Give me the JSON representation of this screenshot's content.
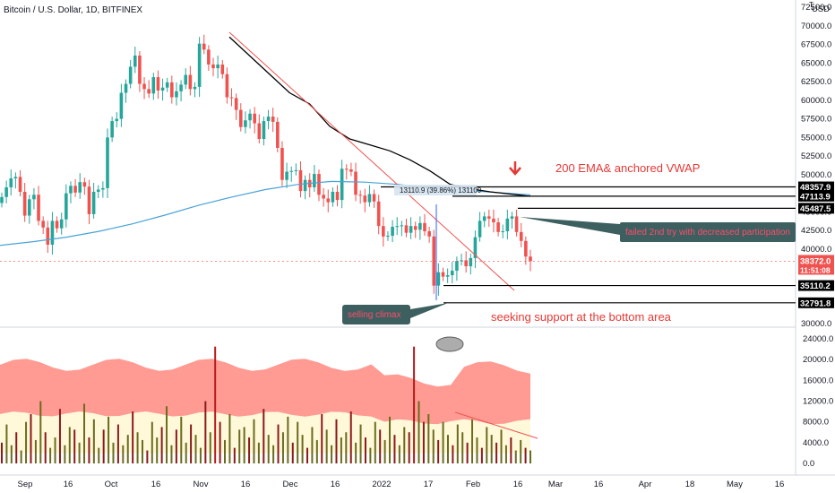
{
  "header": {
    "symbol": "Bitcoin / U.S. Dollar, 1D, BITFINEX",
    "currency": "USD",
    "currency_superscript": "T"
  },
  "colors": {
    "up": "#26a69a",
    "down": "#ef5350",
    "ema": "#4aa3d8",
    "vwap": "#000000",
    "note": "#e53935",
    "bubble": "#3d5f5f"
  },
  "chart_data": [
    {
      "type": "candlestick",
      "title": "Bitcoin / U.S. Dollar, 1D, BITFINEX",
      "ylabel": "USD",
      "ylim": [
        29500,
        72600
      ],
      "y_ticks": [
        "72500.0",
        "70000.0",
        "67500.0",
        "65000.0",
        "62500.0",
        "60000.0",
        "57500.0",
        "55000.0",
        "52500.0",
        "50000.0",
        "47500.0",
        "45000.0",
        "42500.0",
        "40000.0",
        "37500.0",
        "35000.0",
        "32500.0",
        "30000.0"
      ],
      "x_ticks": [
        "Sep",
        "16",
        "Oct",
        "16",
        "Nov",
        "16",
        "Dec",
        "16",
        "2022",
        "17",
        "Feb",
        "16",
        "Mar",
        "16",
        "Apr",
        "18",
        "May",
        "16"
      ],
      "price_levels": [
        {
          "label": "48357.9",
          "value": 48357.9
        },
        {
          "label": "47113.9",
          "value": 47113.9
        },
        {
          "label": "45487.5",
          "value": 45487.5
        },
        {
          "label": "35110.2",
          "value": 35110.2
        },
        {
          "label": "32791.8",
          "value": 32791.8
        }
      ],
      "last_price": {
        "label": "38372.0",
        "countdown": "11:51:08",
        "value": 38372.0
      },
      "measure_label": "13110.9 (39.86%) 131109",
      "annotations": [
        {
          "text": "200 EMA& anchored VWAP"
        },
        {
          "text": "failed 2nd try with decreased participation"
        },
        {
          "text": "selling climax"
        },
        {
          "text": "seeking support at the bottom area"
        }
      ],
      "series": [
        {
          "name": "200 EMA",
          "values": [
            40500,
            41000,
            41600,
            42400,
            43400,
            44600,
            45900,
            47000,
            48000,
            48700,
            49100,
            49000,
            48700,
            48200,
            47900,
            47600,
            47300
          ]
        },
        {
          "name": "anchored VWAP",
          "values": [
            68500,
            66000,
            63500,
            61000,
            59500,
            56500,
            54800,
            54000,
            53200,
            52000,
            50500,
            48700,
            48100,
            47700,
            47400,
            47100
          ]
        },
        {
          "name": "BTCUSD close",
          "values": [
            47000,
            48300,
            49500,
            49700,
            47700,
            44500,
            46700,
            47300,
            43800,
            42900,
            40600,
            43800,
            42800,
            44000,
            47500,
            48500,
            47600,
            49000,
            48400,
            44700,
            47700,
            48000,
            48200,
            55000,
            57200,
            57500,
            61000,
            62200,
            64500,
            66000,
            62200,
            61500,
            60900,
            63100,
            61300,
            61700,
            62400,
            60400,
            61200,
            62100,
            63400,
            61500,
            61800,
            67600,
            66800,
            64800,
            64300,
            64800,
            63500,
            60400,
            60300,
            58700,
            56400,
            57300,
            58200,
            56900,
            54800,
            57200,
            57800,
            57100,
            53600,
            49300,
            50400,
            50500,
            50600,
            47800,
            49300,
            48300,
            50100,
            47300,
            46800,
            46300,
            47700,
            46600,
            50800,
            50700,
            50400,
            47300,
            47200,
            46300,
            47400,
            46400,
            43100,
            41700,
            41800,
            43000,
            43100,
            43200,
            42200,
            43100,
            42600,
            43500,
            42400,
            41700,
            35100,
            36900,
            36300,
            36500,
            37100,
            38400,
            38500,
            37700,
            38800,
            41600,
            43800,
            44400,
            44100,
            43600,
            42300,
            42400,
            44100,
            44400,
            42300,
            41100,
            39000,
            38400
          ]
        }
      ],
      "grid": false,
      "legend": "none"
    },
    {
      "type": "bar",
      "title": "",
      "ylabel": "",
      "ylim": [
        0,
        24000
      ],
      "y_ticks": [
        "24000.0",
        "20000.0",
        "16000.0",
        "12000.0",
        "8000.0",
        "4000.0",
        "0.0"
      ],
      "values": [
        4000,
        7500,
        3500,
        6000,
        2500,
        8000,
        9500,
        4500,
        12000,
        6000,
        3000,
        5000,
        10500,
        3500,
        7000,
        6500,
        4000,
        11500,
        5000,
        8500,
        3000,
        6500,
        9000,
        4000,
        7500,
        3500,
        5500,
        10000,
        6000,
        4500,
        2500,
        8000,
        5000,
        7000,
        11000,
        3500,
        6500,
        9000,
        4000,
        7500,
        5500,
        3000,
        12000,
        6000,
        22500,
        8000,
        4500,
        9500,
        3000,
        6500,
        7000,
        5000,
        8500,
        4000,
        10500,
        5500,
        3500,
        7500,
        6000,
        9000,
        4000,
        8000,
        5500,
        3000,
        7000,
        4500,
        9500,
        6500,
        3500,
        8500,
        5000,
        6000,
        10000,
        4000,
        7500,
        5000,
        3000,
        8000,
        6500,
        4500,
        9000,
        5500,
        3500,
        7000,
        6000,
        22500,
        12000,
        8000,
        9500,
        6500,
        4500,
        8000,
        5500,
        3500,
        7500,
        6000,
        4000,
        8500,
        5000,
        3000,
        7000,
        5500,
        4000,
        6500,
        3500,
        5000,
        2500,
        4500,
        3000,
        2500
      ]
    }
  ]
}
